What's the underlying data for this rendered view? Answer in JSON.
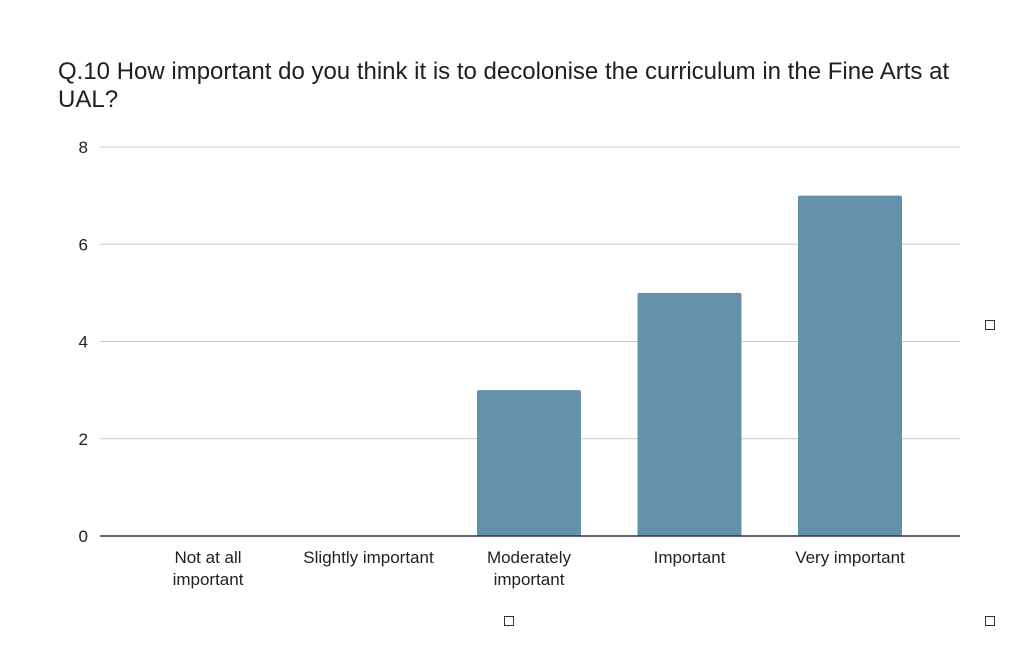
{
  "chart_data": {
    "type": "bar",
    "title": "Q.10 How important do you think it is to decolonise the curriculum in the Fine Arts at UAL?",
    "categories": [
      "Not at all important",
      "Slightly important",
      "Moderately important",
      "Important",
      "Very important"
    ],
    "category_lines": [
      [
        "Not at all",
        "important"
      ],
      [
        "Slightly important"
      ],
      [
        "Moderately",
        "important"
      ],
      [
        "Important"
      ],
      [
        "Very important"
      ]
    ],
    "values": [
      0,
      0,
      3,
      5,
      7
    ],
    "ylim": [
      0,
      8
    ],
    "yticks": [
      0,
      2,
      4,
      6,
      8
    ],
    "xlabel": "",
    "ylabel": "",
    "grid": true,
    "bar_color": "#6590ab",
    "grid_color": "#c8c8c8",
    "axis_color": "#333333"
  }
}
